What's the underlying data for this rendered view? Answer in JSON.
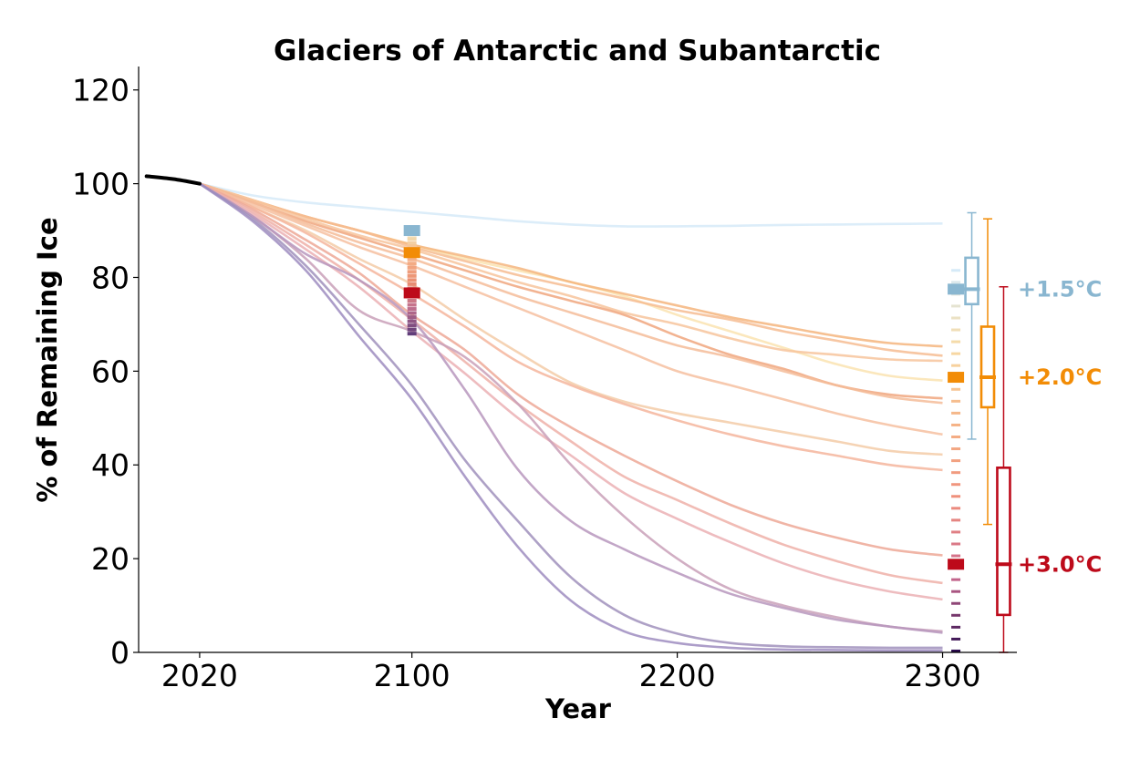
{
  "chart_data": {
    "type": "line",
    "title": "Glaciers of Antarctic and Subantarctic",
    "xlabel": "Year",
    "ylabel": "% of Remaining Ice",
    "xlim": [
      1997,
      2328
    ],
    "ylim": [
      0,
      125
    ],
    "xticks": [
      2020,
      2100,
      2200,
      2300
    ],
    "yticks": [
      0,
      20,
      40,
      60,
      80,
      100,
      120
    ],
    "xtick_labels": [
      "2020",
      "2100",
      "2200",
      "2300"
    ],
    "ytick_labels": [
      "0",
      "20",
      "40",
      "60",
      "80",
      "100",
      "120"
    ],
    "grid": false,
    "historical": {
      "color": "#000000",
      "x": [
        2000,
        2010,
        2020
      ],
      "y": [
        101.6,
        101.0,
        100.0
      ]
    },
    "series_x": [
      2020,
      2040,
      2060,
      2080,
      2100,
      2120,
      2140,
      2160,
      2180,
      2200,
      2220,
      2240,
      2260,
      2280,
      2300
    ],
    "series": [
      {
        "color": "#d6eaf8",
        "values": [
          100,
          97.5,
          96,
          95,
          94,
          93,
          92,
          91.3,
          90.9,
          90.9,
          91,
          91.2,
          91.3,
          91.4,
          91.5
        ]
      },
      {
        "color": "#fae3b0",
        "values": [
          100,
          96.5,
          93,
          90,
          87,
          84,
          81.5,
          79,
          76,
          72,
          68.5,
          65,
          61.5,
          59,
          58
        ]
      },
      {
        "color": "#f4b57e",
        "values": [
          100,
          96.5,
          93,
          90,
          87,
          84.5,
          82,
          79,
          76.5,
          74,
          71.5,
          69.5,
          67.5,
          66,
          65.3
        ]
      },
      {
        "color": "#f6bc92",
        "values": [
          100,
          96.5,
          93,
          90,
          86.5,
          83.5,
          80.5,
          78,
          75.5,
          73,
          71,
          68.5,
          66.5,
          64.5,
          63.3
        ]
      },
      {
        "color": "#f7c49c",
        "values": [
          100,
          96.5,
          92.5,
          89,
          86,
          82.5,
          79,
          76,
          72.5,
          70,
          67,
          64.5,
          63.5,
          62.5,
          62.2
        ]
      },
      {
        "color": "#f0a67e",
        "values": [
          100,
          96,
          92,
          88.5,
          85,
          81.5,
          78,
          75,
          72,
          67.5,
          63.5,
          60.5,
          57,
          55,
          54.2
        ]
      },
      {
        "color": "#f4bc99",
        "values": [
          100,
          96,
          91.5,
          87.5,
          84,
          80,
          76,
          72.5,
          69,
          65.5,
          63,
          60,
          57,
          54.5,
          53.2
        ]
      },
      {
        "color": "#f6c0a0",
        "values": [
          100,
          95.5,
          91,
          86.5,
          82.5,
          78,
          73.5,
          69,
          64.5,
          60,
          57,
          54,
          51,
          48.5,
          46.5
        ]
      },
      {
        "color": "#f3cba7",
        "values": [
          100,
          95,
          90,
          84,
          78.5,
          71,
          64,
          57.5,
          53.5,
          51,
          49,
          47,
          45,
          43,
          42.2
        ]
      },
      {
        "color": "#f4b59c",
        "values": [
          100,
          95,
          89.5,
          83,
          76.5,
          69.5,
          62,
          57,
          53,
          49.5,
          46.5,
          44,
          42,
          40,
          38.9
        ]
      },
      {
        "color": "#eda896",
        "values": [
          100,
          94.5,
          88,
          81,
          72,
          64.5,
          55,
          48,
          42,
          36.5,
          31.5,
          27.5,
          24.5,
          22,
          20.7
        ]
      },
      {
        "color": "#eeb0a8",
        "values": [
          100,
          94,
          87,
          79.5,
          71,
          62,
          53,
          45,
          37.5,
          32.5,
          27.5,
          23,
          19.5,
          16.5,
          14.8
        ]
      },
      {
        "color": "#ebb0b4",
        "values": [
          100,
          93.5,
          86,
          78,
          68.5,
          59.5,
          50,
          42,
          34,
          28.5,
          23.5,
          19,
          15.5,
          13,
          11.3
        ]
      },
      {
        "color": "#c9a0b8",
        "values": [
          100,
          93,
          84,
          73,
          68.5,
          63,
          53,
          40,
          29,
          20,
          13.5,
          10,
          7.5,
          5.5,
          4.5
        ]
      },
      {
        "color": "#b796bd",
        "values": [
          100,
          93,
          85,
          79.5,
          71,
          56,
          39,
          28,
          22,
          17,
          12.5,
          9.5,
          7,
          5.5,
          4.2
        ]
      },
      {
        "color": "#a090bc",
        "values": [
          100,
          92.5,
          82.5,
          70,
          57,
          41,
          28,
          16,
          8,
          4,
          2,
          1.3,
          1.1,
          1.0,
          1.0
        ]
      },
      {
        "color": "#9d8cc0",
        "values": [
          100,
          92,
          81.5,
          67.5,
          54,
          37.5,
          22.5,
          11,
          4.5,
          2,
          1,
          0.6,
          0.5,
          0.4,
          0.4
        ]
      }
    ],
    "markers_2100": {
      "x": 2100,
      "scenarios": [
        {
          "name": "+1.5°C",
          "color": "#89b6d0",
          "value": 90
        },
        {
          "name": "+2.0°C",
          "color": "#f28c06",
          "value": 85.3
        },
        {
          "name": "+3.0°C",
          "color": "#bd0a1a",
          "value": 76.7
        }
      ],
      "spread_range": [
        68,
        90
      ],
      "spread_colors": [
        "#f0e6b9",
        "#f7b68c",
        "#ea8d71",
        "#c1708e",
        "#613d7a"
      ]
    },
    "markers_2300": {
      "x": 2305,
      "scenarios": [
        {
          "name": "+1.5°C",
          "color": "#89b6d0",
          "value": 77.5
        },
        {
          "name": "+2.0°C",
          "color": "#f28c06",
          "value": 58.7
        },
        {
          "name": "+3.0°C",
          "color": "#bd0a1a",
          "value": 18.8
        }
      ],
      "spread_range": [
        0.3,
        81.5
      ],
      "spread_colors": [
        "#d6eaf8",
        "#f7dba5",
        "#f5b386",
        "#ef8f7c",
        "#cc6a8f",
        "#2a0a4e"
      ]
    },
    "boxes": [
      {
        "name": "+1.5°C",
        "color": "#89b6d0",
        "x": 2311,
        "whisker_low": 45.5,
        "q1": 74.3,
        "median": 77.5,
        "q3": 84.2,
        "whisker_high": 93.8
      },
      {
        "name": "+2.0°C",
        "color": "#f28c06",
        "x": 2317,
        "whisker_low": 27.3,
        "q1": 52.3,
        "median": 58.7,
        "q3": 69.5,
        "whisker_high": 92.5
      },
      {
        "name": "+3.0°C",
        "color": "#bd0a1a",
        "x": 2323,
        "whisker_low": 0,
        "q1": 8.0,
        "median": 18.8,
        "q3": 39.4,
        "whisker_high": 78.0
      }
    ],
    "legend": {
      "placement": "right",
      "entries": [
        {
          "name": "+1.5°C",
          "color": "#89b6d0",
          "value": 77.5
        },
        {
          "name": "+2.0°C",
          "color": "#f28c06",
          "value": 58.7
        },
        {
          "name": "+3.0°C",
          "color": "#bd0a1a",
          "value": 18.8
        }
      ]
    }
  }
}
